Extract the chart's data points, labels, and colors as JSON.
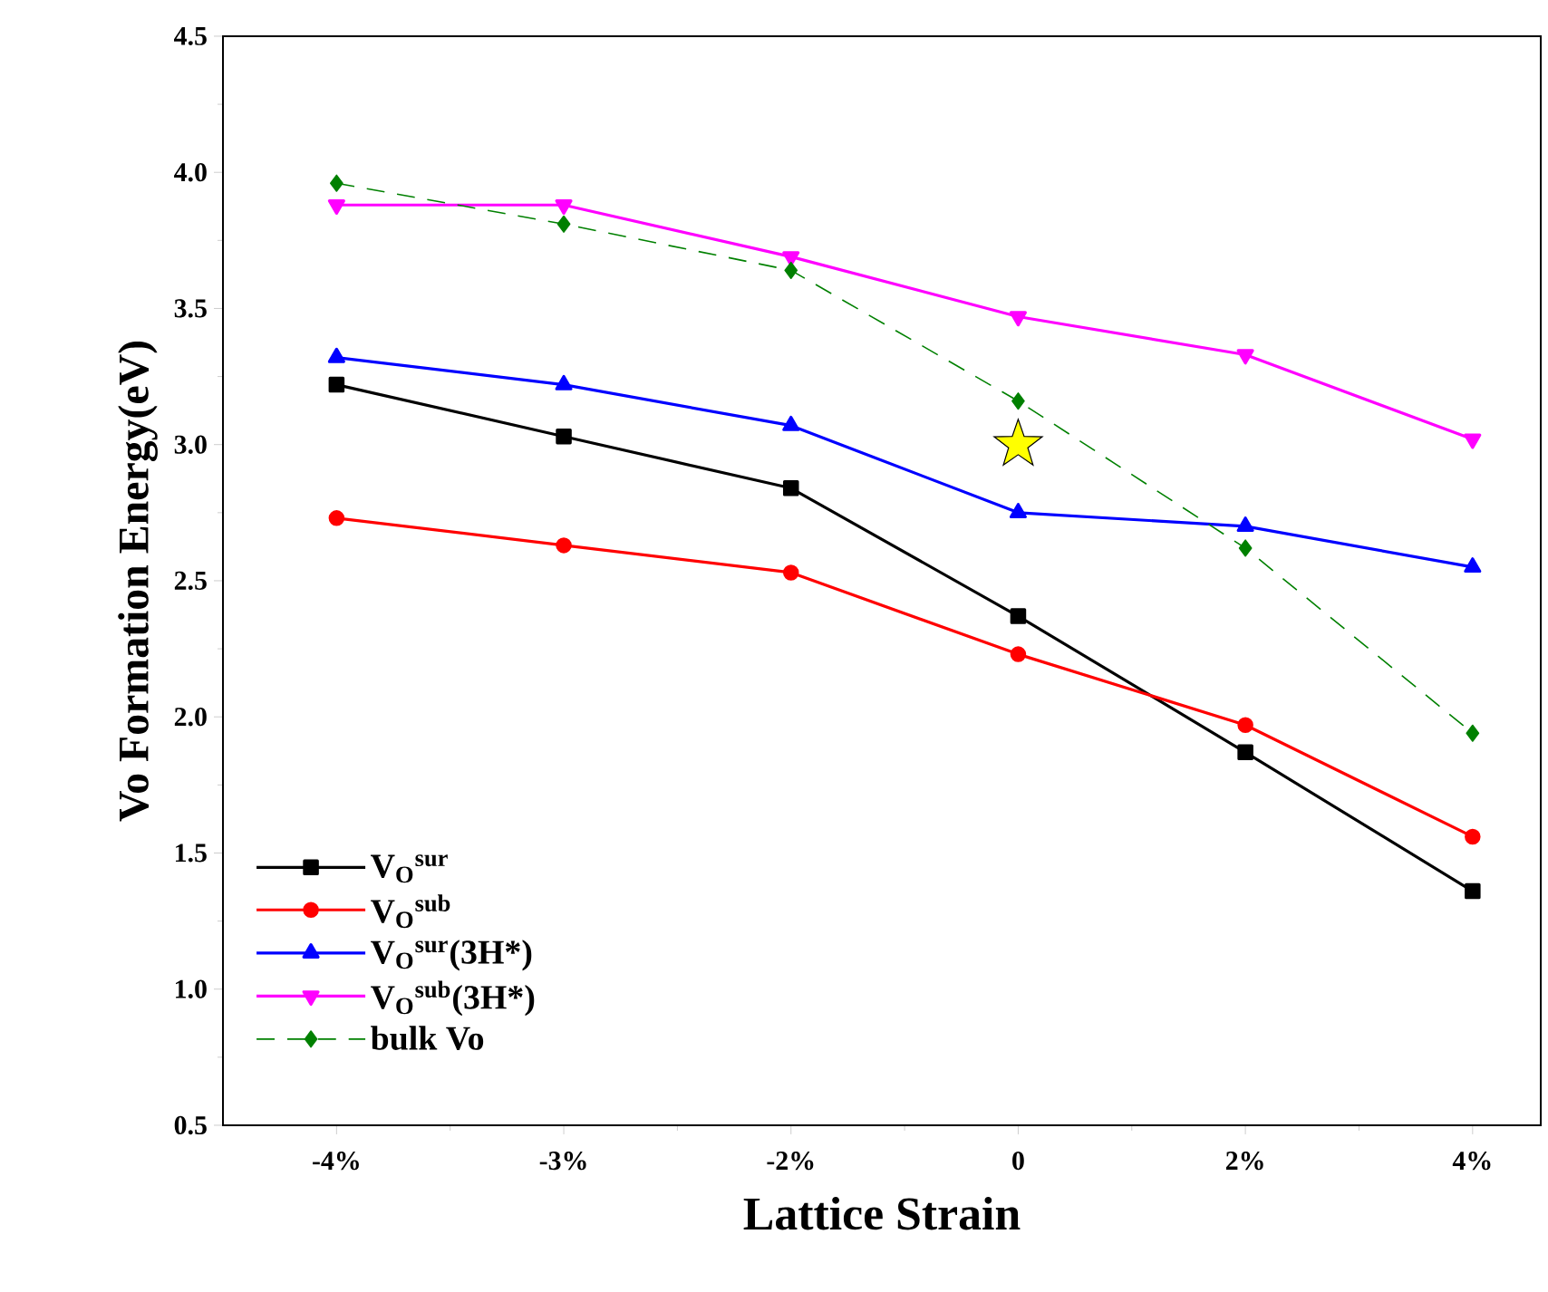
{
  "chart_data": {
    "type": "line",
    "xlabel": "Lattice Strain",
    "ylabel": "Vo Formation Energy(eV)",
    "categories": [
      "-4%",
      "-3%",
      "-2%",
      "0",
      "2%",
      "4%"
    ],
    "ylim": [
      0.5,
      4.5
    ],
    "yticks": [
      {
        "value": 0.5,
        "label": "0.5"
      },
      {
        "value": 1.0,
        "label": "1.0"
      },
      {
        "value": 1.5,
        "label": "1.5"
      },
      {
        "value": 2.0,
        "label": "2.0"
      },
      {
        "value": 2.5,
        "label": "2.5"
      },
      {
        "value": 3.0,
        "label": "3.0"
      },
      {
        "value": 3.5,
        "label": "3.5"
      },
      {
        "value": 4.0,
        "label": "4.0"
      },
      {
        "value": 4.5,
        "label": "4.5"
      }
    ],
    "legend": "bottom left",
    "grid": false,
    "series": [
      {
        "name": "V$_{O}$$^{sur}$",
        "color": "#000000",
        "marker": "square",
        "line_style": "solid",
        "values": [
          3.22,
          3.03,
          2.84,
          2.37,
          1.87,
          1.36
        ]
      },
      {
        "name": "V$_{O}$$^{sub}$",
        "color": "#ff0000",
        "marker": "circle",
        "line_style": "solid",
        "values": [
          2.73,
          2.63,
          2.53,
          2.23,
          1.97,
          1.56
        ]
      },
      {
        "name": "V$_{O}$$^{sur}$(3H*)",
        "color": "#0000ff",
        "marker": "triangle",
        "line_style": "solid",
        "values": [
          3.32,
          3.22,
          3.07,
          2.75,
          2.7,
          2.55
        ]
      },
      {
        "name": "V$_{O}$$^{sub}$(3H*)",
        "color": "#ff00ff",
        "marker": "triangle-down",
        "line_style": "solid",
        "values": [
          3.88,
          3.88,
          3.69,
          3.47,
          3.33,
          3.02
        ]
      },
      {
        "name": "bulk Vo",
        "color": "#008000",
        "marker": "diamond",
        "line_style": "dashed",
        "values": [
          3.96,
          3.81,
          3.64,
          3.16,
          2.62,
          1.94
        ]
      },
      {
        "type": "scatter",
        "color": "#ffff00",
        "marker": "star",
        "x": [
          "0"
        ],
        "values": [
          3.0
        ]
      }
    ]
  }
}
